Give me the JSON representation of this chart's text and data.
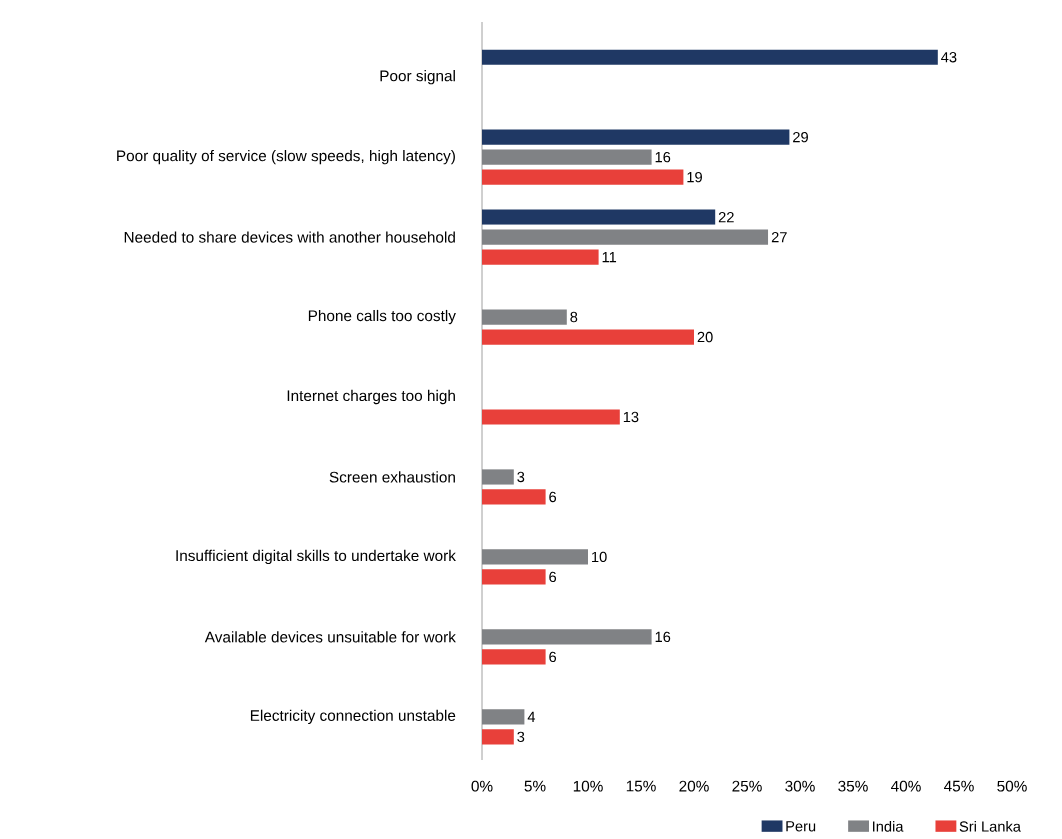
{
  "chart_data": {
    "type": "bar",
    "orientation": "horizontal",
    "categories": [
      "Poor signal",
      "Poor quality of service (slow speeds, high latency)",
      "Needed to share devices with another household",
      "Phone calls too costly",
      "Internet charges too high",
      "Screen exhaustion",
      "Insufficient digital skills to undertake work",
      "Available devices unsuitable for work",
      "Electricity connection unstable"
    ],
    "series": [
      {
        "name": "Peru",
        "color": "#1f3864",
        "values": [
          43,
          29,
          22,
          null,
          null,
          null,
          null,
          null,
          null
        ]
      },
      {
        "name": "India",
        "color": "#808285",
        "values": [
          null,
          16,
          27,
          8,
          null,
          3,
          10,
          16,
          4
        ]
      },
      {
        "name": "Sri Lanka",
        "color": "#e8403a",
        "values": [
          null,
          19,
          11,
          20,
          13,
          6,
          6,
          6,
          3
        ]
      }
    ],
    "xlim": [
      0,
      50
    ],
    "xticks": [
      {
        "value": 0,
        "label": "0%"
      },
      {
        "value": 5,
        "label": "5%"
      },
      {
        "value": 10,
        "label": "10%"
      },
      {
        "value": 15,
        "label": "15%"
      },
      {
        "value": 20,
        "label": "20%"
      },
      {
        "value": 25,
        "label": "25%"
      },
      {
        "value": 30,
        "label": "30%"
      },
      {
        "value": 35,
        "label": "35%"
      },
      {
        "value": 40,
        "label": "40%"
      },
      {
        "value": 45,
        "label": "45%"
      },
      {
        "value": 50,
        "label": "50%"
      }
    ],
    "data_labels": true,
    "grid": false,
    "legend": "bottom right"
  }
}
